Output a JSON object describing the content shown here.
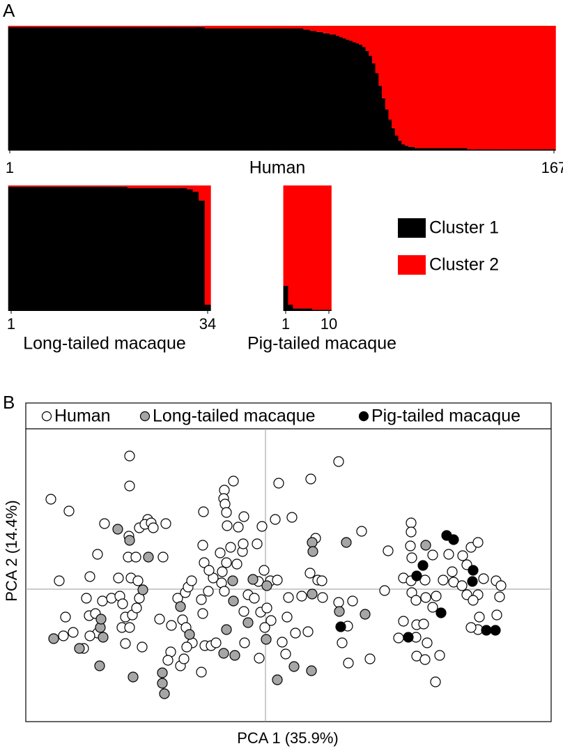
{
  "chart_data": [
    {
      "type": "bar",
      "stacked": true,
      "panel": "A",
      "xlabel": "Human",
      "xlim": [
        1,
        167
      ],
      "xticks": [
        1,
        167
      ],
      "ylim": [
        0,
        1
      ],
      "series": [
        {
          "name": "Cluster 1",
          "color": "#000000",
          "values": [
            0.99,
            0.99,
            0.99,
            0.99,
            0.99,
            0.99,
            0.99,
            0.99,
            0.99,
            0.99,
            0.99,
            0.99,
            0.99,
            0.99,
            0.99,
            0.99,
            0.99,
            0.99,
            0.99,
            0.99,
            0.99,
            0.99,
            0.99,
            0.99,
            0.99,
            0.99,
            0.99,
            0.99,
            0.99,
            0.99,
            0.99,
            0.99,
            0.99,
            0.99,
            0.99,
            0.99,
            0.99,
            0.99,
            0.99,
            0.99,
            0.99,
            0.99,
            0.99,
            0.99,
            0.99,
            0.99,
            0.99,
            0.99,
            0.99,
            0.99,
            0.99,
            0.99,
            0.99,
            0.99,
            0.99,
            0.99,
            0.99,
            0.99,
            0.99,
            0.99,
            0.98,
            0.98,
            0.98,
            0.98,
            0.98,
            0.98,
            0.98,
            0.98,
            0.98,
            0.98,
            0.98,
            0.98,
            0.98,
            0.98,
            0.98,
            0.98,
            0.98,
            0.98,
            0.98,
            0.98,
            0.98,
            0.98,
            0.98,
            0.98,
            0.98,
            0.98,
            0.98,
            0.98,
            0.98,
            0.98,
            0.97,
            0.97,
            0.96,
            0.96,
            0.95,
            0.95,
            0.94,
            0.94,
            0.93,
            0.93,
            0.92,
            0.91,
            0.9,
            0.89,
            0.88,
            0.87,
            0.86,
            0.85,
            0.83,
            0.8,
            0.76,
            0.7,
            0.62,
            0.52,
            0.42,
            0.33,
            0.25,
            0.18,
            0.12,
            0.08,
            0.05,
            0.04,
            0.03,
            0.03,
            0.02,
            0.02,
            0.02,
            0.02,
            0.02,
            0.02,
            0.02,
            0.02,
            0.02,
            0.02,
            0.02,
            0.02,
            0.02,
            0.02,
            0.02,
            0.02,
            0.01,
            0.01,
            0.01,
            0.01,
            0.01,
            0.01,
            0.01,
            0.01,
            0.01,
            0.01,
            0.01,
            0.01,
            0.01,
            0.01,
            0.01,
            0.01,
            0.01,
            0.01,
            0.01,
            0.01,
            0.01,
            0.01,
            0.01,
            0.01,
            0.01,
            0.01,
            0.01
          ]
        },
        {
          "name": "Cluster 2",
          "color": "#ff0000",
          "values": [
            0.01,
            0.01,
            0.01,
            0.01,
            0.01,
            0.01,
            0.01,
            0.01,
            0.01,
            0.01,
            0.01,
            0.01,
            0.01,
            0.01,
            0.01,
            0.01,
            0.01,
            0.01,
            0.01,
            0.01,
            0.01,
            0.01,
            0.01,
            0.01,
            0.01,
            0.01,
            0.01,
            0.01,
            0.01,
            0.01,
            0.01,
            0.01,
            0.01,
            0.01,
            0.01,
            0.01,
            0.01,
            0.01,
            0.01,
            0.01,
            0.01,
            0.01,
            0.01,
            0.01,
            0.01,
            0.01,
            0.01,
            0.01,
            0.01,
            0.01,
            0.01,
            0.01,
            0.01,
            0.01,
            0.01,
            0.01,
            0.01,
            0.01,
            0.01,
            0.01,
            0.02,
            0.02,
            0.02,
            0.02,
            0.02,
            0.02,
            0.02,
            0.02,
            0.02,
            0.02,
            0.02,
            0.02,
            0.02,
            0.02,
            0.02,
            0.02,
            0.02,
            0.02,
            0.02,
            0.02,
            0.02,
            0.02,
            0.02,
            0.02,
            0.02,
            0.02,
            0.02,
            0.02,
            0.02,
            0.02,
            0.03,
            0.03,
            0.04,
            0.04,
            0.05,
            0.05,
            0.06,
            0.06,
            0.07,
            0.07,
            0.08,
            0.09,
            0.1,
            0.11,
            0.12,
            0.13,
            0.14,
            0.15,
            0.17,
            0.2,
            0.24,
            0.3,
            0.38,
            0.48,
            0.58,
            0.67,
            0.75,
            0.82,
            0.88,
            0.92,
            0.95,
            0.96,
            0.97,
            0.97,
            0.98,
            0.98,
            0.98,
            0.98,
            0.98,
            0.98,
            0.98,
            0.98,
            0.98,
            0.98,
            0.98,
            0.98,
            0.98,
            0.98,
            0.98,
            0.98,
            0.99,
            0.99,
            0.99,
            0.99,
            0.99,
            0.99,
            0.99,
            0.99,
            0.99,
            0.99,
            0.99,
            0.99,
            0.99,
            0.99,
            0.99,
            0.99,
            0.99,
            0.99,
            0.99,
            0.99,
            0.99,
            0.99,
            0.99,
            0.99,
            0.99,
            0.99,
            0.99
          ]
        }
      ]
    },
    {
      "type": "bar",
      "stacked": true,
      "xlabel": "Long-tailed macaque",
      "xlim": [
        1,
        34
      ],
      "xticks": [
        1,
        34
      ],
      "ylim": [
        0,
        1
      ],
      "series": [
        {
          "color": "#000000",
          "values": [
            0.99,
            0.99,
            0.99,
            0.99,
            0.99,
            0.99,
            0.99,
            0.99,
            0.99,
            0.99,
            0.99,
            0.99,
            0.99,
            0.99,
            0.99,
            0.99,
            0.99,
            0.99,
            0.99,
            0.99,
            0.98,
            0.98,
            0.98,
            0.98,
            0.98,
            0.98,
            0.98,
            0.98,
            0.98,
            0.98,
            0.97,
            0.95,
            0.88,
            0.05
          ]
        },
        {
          "color": "#ff0000",
          "values": [
            0.01,
            0.01,
            0.01,
            0.01,
            0.01,
            0.01,
            0.01,
            0.01,
            0.01,
            0.01,
            0.01,
            0.01,
            0.01,
            0.01,
            0.01,
            0.01,
            0.01,
            0.01,
            0.01,
            0.01,
            0.02,
            0.02,
            0.02,
            0.02,
            0.02,
            0.02,
            0.02,
            0.02,
            0.02,
            0.02,
            0.03,
            0.05,
            0.12,
            0.95
          ]
        }
      ]
    },
    {
      "type": "bar",
      "stacked": true,
      "xlabel": "Pig-tailed macaque",
      "xlim": [
        1,
        10
      ],
      "xticks": [
        1,
        10
      ],
      "ylim": [
        0,
        1
      ],
      "series": [
        {
          "color": "#000000",
          "values": [
            0.2,
            0.05,
            0.02,
            0.02,
            0.02,
            0.02,
            0.01,
            0.01,
            0.01,
            0.01
          ]
        },
        {
          "color": "#ff0000",
          "values": [
            0.8,
            0.95,
            0.98,
            0.98,
            0.98,
            0.98,
            0.99,
            0.99,
            0.99,
            0.99
          ]
        }
      ]
    },
    {
      "type": "scatter",
      "panel": "B",
      "xlabel": "PCA 1 (35.9%)",
      "ylabel": "PCA 2 (14.4%)",
      "xlim": [
        -344,
        410
      ],
      "ylim": [
        -190,
        230
      ],
      "zero_lines": true,
      "series": [
        {
          "name": "Human",
          "color": "#ffffff",
          "x": [
            -195,
            -195,
            -308,
            -282,
            -231,
            -169,
            -181,
            -173,
            -164,
            -161,
            -143,
            -241,
            -196,
            -197,
            -186,
            -147,
            -193,
            -211,
            -296,
            -252,
            -183,
            -257,
            -234,
            -287,
            -253,
            -244,
            -221,
            -209,
            -205,
            -201,
            -191,
            -185,
            -181,
            -206,
            -201,
            -177,
            -241,
            -290,
            -276,
            -252,
            -261,
            -126,
            -152,
            -115,
            -111,
            -106,
            -135,
            -119,
            -114,
            -90,
            -105,
            -113,
            -136,
            -140,
            -122,
            -87,
            -78,
            -71,
            -30,
            -9,
            -92,
            -117,
            -195,
            -59,
            -46,
            -60,
            -58,
            -56,
            -55,
            -39,
            -31,
            -89,
            -90,
            -88,
            -65,
            -56,
            -41,
            -33,
            -32,
            -50,
            -62,
            -75,
            -81,
            -92,
            -82,
            -63,
            -59,
            -10,
            7,
            17,
            -2,
            -12,
            19,
            14,
            38,
            65,
            105,
            72,
            64,
            75,
            81,
            82,
            -25,
            -7,
            2,
            8,
            -1,
            -31,
            -16,
            31,
            43,
            61,
            24,
            29,
            119,
            150,
            110,
            118,
            125,
            138,
            171,
            105,
            -5,
            33,
            52,
            209,
            209,
            208,
            210,
            240,
            198,
            209,
            229,
            245,
            210,
            216,
            230,
            240,
            295,
            305,
            263,
            283,
            289,
            268,
            255,
            270,
            282,
            289,
            305,
            313,
            331,
            338,
            336,
            298,
            307,
            332,
            305,
            295,
            191,
            198,
            216,
            217,
            229,
            250,
            232,
            244,
            217,
            227,
            176
          ],
          "y": [
            191,
            148,
            129,
            112,
            94,
            100,
            88,
            93,
            95,
            88,
            94,
            50,
            76,
            46,
            46,
            46,
            16,
            16,
            12,
            18,
            12,
            -13,
            -17,
            -40,
            -38,
            -35,
            -13,
            -10,
            -21,
            -40,
            -37,
            -27,
            -13,
            -55,
            -78,
            -83,
            -63,
            -67,
            -62,
            -67,
            -85,
            -13,
            -43,
            -5,
            3,
            12,
            -52,
            -44,
            -55,
            -35,
            -77,
            -83,
            -90,
            -102,
            -110,
            -81,
            -81,
            -77,
            -77,
            -99,
            -119,
            -100,
            -55,
            142,
            155,
            130,
            122,
            110,
            91,
            89,
            104,
            111,
            63,
            38,
            52,
            38,
            36,
            54,
            65,
            60,
            25,
            16,
            27,
            -15,
            -3,
            9,
            -3,
            11,
            12,
            13,
            27,
            65,
            152,
            100,
            103,
            158,
            183,
            73,
            23,
            13,
            12,
            -12,
            -8,
            -33,
            -27,
            -45,
            -55,
            -32,
            -13,
            -40,
            -63,
            -61,
            -76,
            -93,
            -106,
            -100,
            -77,
            -53,
            -17,
            83,
            -2,
            -19,
            90,
            -12,
            -10,
            95,
            82,
            62,
            45,
            49,
            16,
            12,
            13,
            -10,
            -5,
            -16,
            -12,
            -26,
            60,
            67,
            50,
            48,
            35,
            25,
            13,
            10,
            5,
            -8,
            -8,
            15,
            12,
            5,
            -11,
            -16,
            -40,
            -37,
            -58,
            -55,
            -70,
            -46,
            -69,
            -96,
            -101,
            -95,
            -77,
            -133,
            -51,
            -50,
            55
          ]
        },
        {
          "name": "Long-tailed macaque",
          "color": "#a6a6a6",
          "x": [
            -212,
            -195,
            -168,
            -176,
            -47,
            -18,
            -46,
            -56,
            -60,
            -44,
            2,
            1,
            -25,
            67,
            68,
            67,
            116,
            106,
            143,
            230,
            17,
            41,
            66,
            -148,
            -148,
            -145,
            -190,
            -238,
            -237,
            -233,
            -236,
            -267,
            -304,
            -122,
            -109
          ],
          "y": [
            86,
            70,
            46,
            -1,
            12,
            14,
            -17,
            -58,
            -92,
            -95,
            5,
            -72,
            -48,
            67,
            54,
            -7,
            67,
            -32,
            -36,
            63,
            -130,
            -111,
            -117,
            -120,
            -135,
            -150,
            -126,
            -110,
            -55,
            -69,
            -43,
            -85,
            -71,
            -25,
            -65
          ]
        },
        {
          "name": "Pig-tailed macaque",
          "color": "#000000",
          "x": [
            260,
            270,
            226,
            217,
            298,
            297,
            252,
            108,
            205,
            317,
            330
          ],
          "y": [
            77,
            71,
            34,
            19,
            27,
            11,
            -34,
            -54,
            -69,
            -59,
            -59
          ]
        }
      ]
    }
  ]
}
